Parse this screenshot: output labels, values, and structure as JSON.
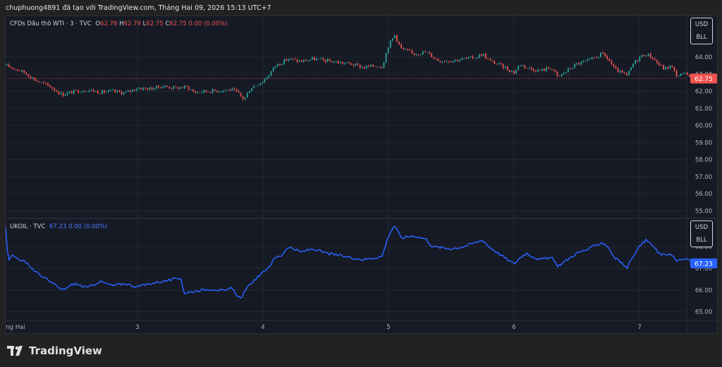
{
  "header": {
    "text": "chuphuong4891 đã tạo với TradingView.com, Tháng Hai 09, 2026 15:13 UTC+7"
  },
  "top_pane": {
    "symbol": "CFDs Dầu thô WTI · 3 · TVC",
    "o_label": "O",
    "o_value": "62.76",
    "h_label": "H",
    "h_value": "62.79",
    "l_label": "L",
    "l_value": "62.75",
    "c_label": "C",
    "c_value": "62.75",
    "change": "0.00 (0.00%)",
    "currency": "USD",
    "unit": "BLL",
    "price_tag": "62.75",
    "up_color": "#26a69a",
    "down_color": "#ef5350"
  },
  "bottom_pane": {
    "symbol": "UKOIL · TVC",
    "value": "67.23",
    "change": "0.00 (0.00%)",
    "currency": "USD",
    "unit": "BLL",
    "price_tag": "67.23",
    "line_color": "#2962ff"
  },
  "footer": {
    "brand": "TradingView"
  },
  "chart_data": [
    {
      "type": "candlestick",
      "title": "CFDs Dầu thô WTI · 3 · TVC",
      "ylim": [
        54.6,
        66.4
      ],
      "y_ticks": [
        "64.00",
        "63.00",
        "62.00",
        "61.00",
        "60.00",
        "59.00",
        "58.00",
        "57.00",
        "56.00",
        "55.00"
      ],
      "x_ticks": [
        "ng Hai",
        "3",
        "4",
        "5",
        "6",
        "7"
      ],
      "x_range": [
        1.95,
        7.65
      ],
      "last_price": 62.75,
      "points": [
        {
          "x": 1.95,
          "y": 63.5
        },
        {
          "x": 2.0,
          "y": 63.4
        },
        {
          "x": 2.1,
          "y": 63.1
        },
        {
          "x": 2.2,
          "y": 62.6
        },
        {
          "x": 2.3,
          "y": 62.3
        },
        {
          "x": 2.4,
          "y": 61.8
        },
        {
          "x": 2.5,
          "y": 62.0
        },
        {
          "x": 2.6,
          "y": 62.1
        },
        {
          "x": 2.7,
          "y": 61.95
        },
        {
          "x": 2.8,
          "y": 62.0
        },
        {
          "x": 2.9,
          "y": 61.9
        },
        {
          "x": 3.0,
          "y": 62.2
        },
        {
          "x": 3.1,
          "y": 62.15
        },
        {
          "x": 3.2,
          "y": 62.3
        },
        {
          "x": 3.3,
          "y": 62.2
        },
        {
          "x": 3.4,
          "y": 62.25
        },
        {
          "x": 3.45,
          "y": 61.95
        },
        {
          "x": 3.55,
          "y": 62.0
        },
        {
          "x": 3.65,
          "y": 62.05
        },
        {
          "x": 3.75,
          "y": 62.1
        },
        {
          "x": 3.8,
          "y": 61.9
        },
        {
          "x": 3.85,
          "y": 61.5
        },
        {
          "x": 3.9,
          "y": 62.2
        },
        {
          "x": 4.0,
          "y": 62.6
        },
        {
          "x": 4.05,
          "y": 63.0
        },
        {
          "x": 4.1,
          "y": 63.5
        },
        {
          "x": 4.2,
          "y": 63.9
        },
        {
          "x": 4.3,
          "y": 63.75
        },
        {
          "x": 4.4,
          "y": 63.9
        },
        {
          "x": 4.5,
          "y": 63.8
        },
        {
          "x": 4.6,
          "y": 63.7
        },
        {
          "x": 4.7,
          "y": 63.6
        },
        {
          "x": 4.8,
          "y": 63.4
        },
        {
          "x": 4.9,
          "y": 63.5
        },
        {
          "x": 4.95,
          "y": 63.45
        },
        {
          "x": 5.0,
          "y": 64.7
        },
        {
          "x": 5.05,
          "y": 65.3
        },
        {
          "x": 5.1,
          "y": 64.5
        },
        {
          "x": 5.2,
          "y": 64.2
        },
        {
          "x": 5.3,
          "y": 64.3
        },
        {
          "x": 5.4,
          "y": 63.8
        },
        {
          "x": 5.5,
          "y": 63.8
        },
        {
          "x": 5.6,
          "y": 63.9
        },
        {
          "x": 5.7,
          "y": 64.0
        },
        {
          "x": 5.75,
          "y": 64.2
        },
        {
          "x": 5.8,
          "y": 63.8
        },
        {
          "x": 5.9,
          "y": 63.5
        },
        {
          "x": 6.0,
          "y": 63.1
        },
        {
          "x": 6.05,
          "y": 63.6
        },
        {
          "x": 6.1,
          "y": 63.4
        },
        {
          "x": 6.2,
          "y": 63.2
        },
        {
          "x": 6.3,
          "y": 63.4
        },
        {
          "x": 6.35,
          "y": 62.8
        },
        {
          "x": 6.4,
          "y": 63.1
        },
        {
          "x": 6.5,
          "y": 63.6
        },
        {
          "x": 6.6,
          "y": 63.8
        },
        {
          "x": 6.7,
          "y": 64.2
        },
        {
          "x": 6.75,
          "y": 63.9
        },
        {
          "x": 6.8,
          "y": 63.3
        },
        {
          "x": 6.85,
          "y": 63.1
        },
        {
          "x": 6.9,
          "y": 62.9
        },
        {
          "x": 6.95,
          "y": 63.6
        },
        {
          "x": 7.0,
          "y": 64.0
        },
        {
          "x": 7.05,
          "y": 64.2
        },
        {
          "x": 7.1,
          "y": 64.0
        },
        {
          "x": 7.15,
          "y": 63.6
        },
        {
          "x": 7.2,
          "y": 63.3
        },
        {
          "x": 7.25,
          "y": 63.5
        },
        {
          "x": 7.3,
          "y": 62.9
        },
        {
          "x": 7.35,
          "y": 63.0
        },
        {
          "x": 7.4,
          "y": 62.95
        },
        {
          "x": 7.5,
          "y": 62.9
        },
        {
          "x": 7.6,
          "y": 62.8
        },
        {
          "x": 7.65,
          "y": 62.75
        }
      ]
    },
    {
      "type": "line",
      "title": "UKOIL · TVC",
      "ylim": [
        64.6,
        69.3
      ],
      "y_ticks": [
        "68.00",
        "67.00",
        "66.00",
        "65.00"
      ],
      "x_ticks": [
        "ng Hai",
        "3",
        "4",
        "5",
        "6",
        "7"
      ],
      "x_range": [
        1.95,
        7.65
      ],
      "last_price": 67.23,
      "points": [
        {
          "x": 1.95,
          "y": 68.9
        },
        {
          "x": 1.97,
          "y": 67.4
        },
        {
          "x": 2.0,
          "y": 67.6
        },
        {
          "x": 2.1,
          "y": 67.3
        },
        {
          "x": 2.2,
          "y": 66.8
        },
        {
          "x": 2.3,
          "y": 66.4
        },
        {
          "x": 2.4,
          "y": 66.0
        },
        {
          "x": 2.5,
          "y": 66.3
        },
        {
          "x": 2.6,
          "y": 66.1
        },
        {
          "x": 2.7,
          "y": 66.4
        },
        {
          "x": 2.8,
          "y": 66.2
        },
        {
          "x": 2.9,
          "y": 66.3
        },
        {
          "x": 3.0,
          "y": 66.15
        },
        {
          "x": 3.1,
          "y": 66.3
        },
        {
          "x": 3.2,
          "y": 66.4
        },
        {
          "x": 3.35,
          "y": 66.55
        },
        {
          "x": 3.37,
          "y": 65.85
        },
        {
          "x": 3.5,
          "y": 66.0
        },
        {
          "x": 3.6,
          "y": 66.05
        },
        {
          "x": 3.7,
          "y": 65.95
        },
        {
          "x": 3.75,
          "y": 66.1
        },
        {
          "x": 3.82,
          "y": 65.6
        },
        {
          "x": 3.9,
          "y": 66.3
        },
        {
          "x": 4.0,
          "y": 66.8
        },
        {
          "x": 4.05,
          "y": 67.1
        },
        {
          "x": 4.1,
          "y": 67.5
        },
        {
          "x": 4.15,
          "y": 67.6
        },
        {
          "x": 4.2,
          "y": 68.0
        },
        {
          "x": 4.3,
          "y": 67.75
        },
        {
          "x": 4.4,
          "y": 67.9
        },
        {
          "x": 4.5,
          "y": 67.7
        },
        {
          "x": 4.6,
          "y": 67.6
        },
        {
          "x": 4.7,
          "y": 67.5
        },
        {
          "x": 4.8,
          "y": 67.4
        },
        {
          "x": 4.9,
          "y": 67.5
        },
        {
          "x": 4.95,
          "y": 67.55
        },
        {
          "x": 5.0,
          "y": 68.5
        },
        {
          "x": 5.05,
          "y": 69.0
        },
        {
          "x": 5.1,
          "y": 68.4
        },
        {
          "x": 5.2,
          "y": 68.5
        },
        {
          "x": 5.3,
          "y": 68.35
        },
        {
          "x": 5.35,
          "y": 68.0
        },
        {
          "x": 5.5,
          "y": 67.9
        },
        {
          "x": 5.6,
          "y": 68.0
        },
        {
          "x": 5.7,
          "y": 68.2
        },
        {
          "x": 5.75,
          "y": 68.3
        },
        {
          "x": 5.8,
          "y": 68.0
        },
        {
          "x": 5.9,
          "y": 67.6
        },
        {
          "x": 6.0,
          "y": 67.2
        },
        {
          "x": 6.05,
          "y": 67.5
        },
        {
          "x": 6.1,
          "y": 67.7
        },
        {
          "x": 6.2,
          "y": 67.4
        },
        {
          "x": 6.3,
          "y": 67.5
        },
        {
          "x": 6.35,
          "y": 67.1
        },
        {
          "x": 6.4,
          "y": 67.3
        },
        {
          "x": 6.5,
          "y": 67.7
        },
        {
          "x": 6.6,
          "y": 67.9
        },
        {
          "x": 6.7,
          "y": 68.2
        },
        {
          "x": 6.75,
          "y": 68.0
        },
        {
          "x": 6.8,
          "y": 67.5
        },
        {
          "x": 6.85,
          "y": 67.3
        },
        {
          "x": 6.9,
          "y": 67.0
        },
        {
          "x": 6.95,
          "y": 67.6
        },
        {
          "x": 7.0,
          "y": 68.0
        },
        {
          "x": 7.05,
          "y": 68.3
        },
        {
          "x": 7.1,
          "y": 68.1
        },
        {
          "x": 7.15,
          "y": 67.7
        },
        {
          "x": 7.2,
          "y": 67.6
        },
        {
          "x": 7.25,
          "y": 67.7
        },
        {
          "x": 7.3,
          "y": 67.3
        },
        {
          "x": 7.35,
          "y": 67.45
        },
        {
          "x": 7.4,
          "y": 67.35
        },
        {
          "x": 7.5,
          "y": 67.3
        },
        {
          "x": 7.6,
          "y": 67.25
        },
        {
          "x": 7.65,
          "y": 67.23
        }
      ]
    }
  ]
}
